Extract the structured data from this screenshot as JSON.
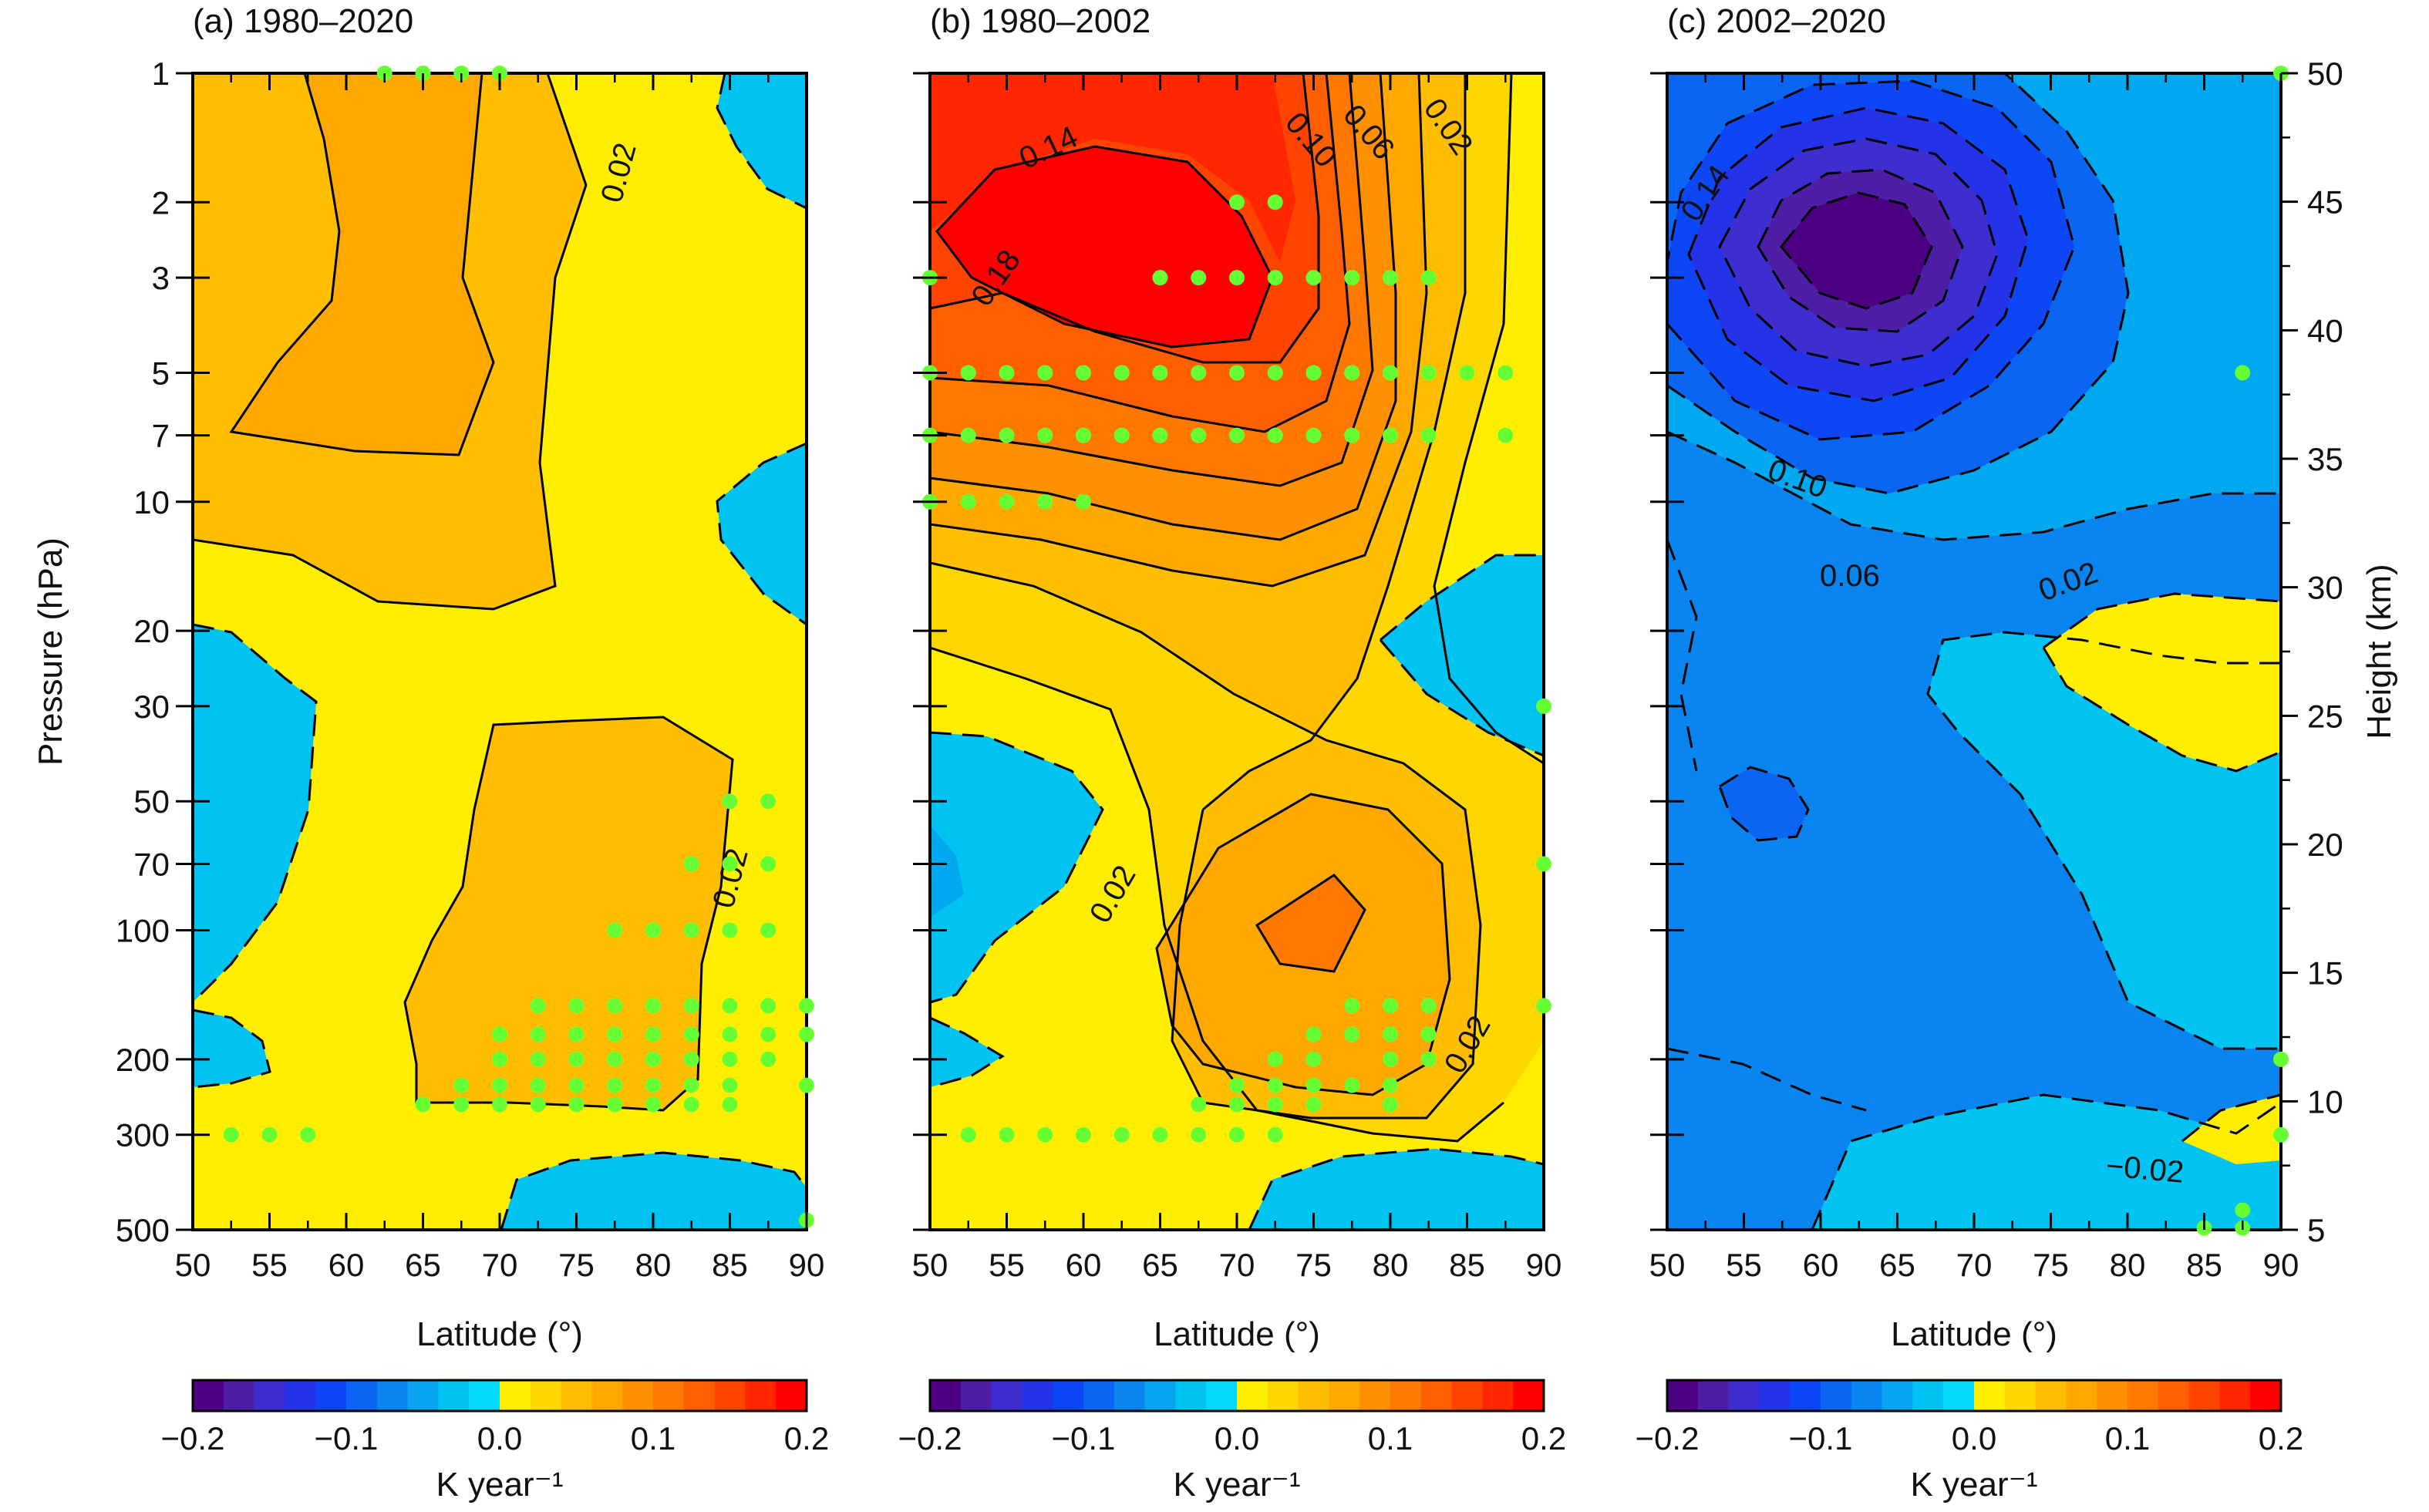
{
  "chart_data": {
    "type": "heatmap",
    "x_tick_labels": [
      "50",
      "55",
      "60",
      "65",
      "70",
      "75",
      "80",
      "85",
      "90"
    ],
    "x_values": [
      50,
      55,
      60,
      65,
      70,
      75,
      80,
      85,
      90
    ],
    "xlim": [
      50,
      90
    ],
    "xlabel": "Latitude (°)",
    "ylabel": "Pressure (hPa)",
    "ylabel_right": "Height (km)",
    "y_scale": "log",
    "ylim": [
      500,
      1
    ],
    "y_tick_values": [
      1,
      2,
      3,
      5,
      7,
      10,
      20,
      30,
      50,
      70,
      100,
      200,
      300,
      500
    ],
    "y_tick_labels": [
      "1",
      "2",
      "3",
      "5",
      "7",
      "10",
      "20",
      "30",
      "50",
      "70",
      "100",
      "200",
      "300",
      "500"
    ],
    "height_tick_labels": [
      "50",
      "45",
      "40",
      "35",
      "30",
      "25",
      "20",
      "15",
      "10",
      "5"
    ],
    "height_tick_values": [
      50,
      45,
      40,
      35,
      30,
      25,
      20,
      15,
      10,
      5
    ],
    "colorbar": {
      "label": "K year⁻¹",
      "range": [
        -0.2,
        0.2
      ],
      "tick_labels": [
        "−0.2",
        "−0.1",
        "0.0",
        "0.1",
        "0.2"
      ],
      "colors": [
        "#4b0082",
        "#4e1fa6",
        "#3f2ecf",
        "#2533e8",
        "#0d47f5",
        "#0a66f2",
        "#0a84ee",
        "#08a4ef",
        "#00c3f2",
        "#00d9f8",
        "#ffee00",
        "#ffd700",
        "#ffbf00",
        "#ffa800",
        "#ff9000",
        "#ff7800",
        "#ff5f00",
        "#ff4400",
        "#ff2600",
        "#ff0000"
      ]
    },
    "panels": [
      {
        "title": "(a) 1980–2020",
        "contour_labels": [
          "0.02",
          "0.02"
        ],
        "regions": [
          {
            "color": "#ffee00",
            "description_value": 0.01
          },
          {
            "color": "#ffbf00",
            "value": 0.03
          },
          {
            "color": "#ffa800",
            "value": 0.05
          },
          {
            "color": "#00c3f2",
            "value": -0.01
          }
        ],
        "significance_points": [
          [
            62.5,
            1
          ],
          [
            65,
            1
          ],
          [
            67.5,
            1
          ],
          [
            70,
            1
          ],
          [
            52.5,
            300
          ],
          [
            55,
            300
          ],
          [
            57.5,
            300
          ],
          [
            85,
            50
          ],
          [
            87.5,
            50
          ],
          [
            82.5,
            70
          ],
          [
            85,
            70
          ],
          [
            87.5,
            70
          ],
          [
            77.5,
            100
          ],
          [
            80,
            100
          ],
          [
            82.5,
            100
          ],
          [
            85,
            100
          ],
          [
            87.5,
            100
          ],
          [
            72.5,
            150
          ],
          [
            75,
            150
          ],
          [
            77.5,
            150
          ],
          [
            80,
            150
          ],
          [
            82.5,
            150
          ],
          [
            85,
            150
          ],
          [
            87.5,
            150
          ],
          [
            90,
            150
          ],
          [
            70,
            175
          ],
          [
            72.5,
            175
          ],
          [
            75,
            175
          ],
          [
            77.5,
            175
          ],
          [
            80,
            175
          ],
          [
            82.5,
            175
          ],
          [
            85,
            175
          ],
          [
            87.5,
            175
          ],
          [
            90,
            175
          ],
          [
            70,
            200
          ],
          [
            72.5,
            200
          ],
          [
            75,
            200
          ],
          [
            77.5,
            200
          ],
          [
            80,
            200
          ],
          [
            82.5,
            200
          ],
          [
            85,
            200
          ],
          [
            87.5,
            200
          ],
          [
            67.5,
            230
          ],
          [
            70,
            230
          ],
          [
            72.5,
            230
          ],
          [
            75,
            230
          ],
          [
            77.5,
            230
          ],
          [
            80,
            230
          ],
          [
            82.5,
            230
          ],
          [
            85,
            230
          ],
          [
            90,
            230
          ],
          [
            65,
            255
          ],
          [
            67.5,
            255
          ],
          [
            70,
            255
          ],
          [
            72.5,
            255
          ],
          [
            75,
            255
          ],
          [
            77.5,
            255
          ],
          [
            80,
            255
          ],
          [
            82.5,
            255
          ],
          [
            85,
            255
          ],
          [
            90,
            475
          ]
        ]
      },
      {
        "title": "(b) 1980–2002",
        "contour_labels": [
          "0.14",
          "0.18",
          "0.10",
          "0.06",
          "0.02",
          "0.02",
          "0.02"
        ],
        "significance_points": [
          [
            70,
            2
          ],
          [
            72.5,
            2
          ],
          [
            50,
            3
          ],
          [
            65,
            3
          ],
          [
            67.5,
            3
          ],
          [
            70,
            3
          ],
          [
            72.5,
            3
          ],
          [
            75,
            3
          ],
          [
            77.5,
            3
          ],
          [
            80,
            3
          ],
          [
            82.5,
            3
          ],
          [
            50,
            5
          ],
          [
            52.5,
            5
          ],
          [
            55,
            5
          ],
          [
            57.5,
            5
          ],
          [
            60,
            5
          ],
          [
            62.5,
            5
          ],
          [
            65,
            5
          ],
          [
            67.5,
            5
          ],
          [
            70,
            5
          ],
          [
            72.5,
            5
          ],
          [
            75,
            5
          ],
          [
            77.5,
            5
          ],
          [
            80,
            5
          ],
          [
            82.5,
            5
          ],
          [
            85,
            5
          ],
          [
            87.5,
            5
          ],
          [
            50,
            7
          ],
          [
            52.5,
            7
          ],
          [
            55,
            7
          ],
          [
            57.5,
            7
          ],
          [
            60,
            7
          ],
          [
            62.5,
            7
          ],
          [
            65,
            7
          ],
          [
            67.5,
            7
          ],
          [
            70,
            7
          ],
          [
            72.5,
            7
          ],
          [
            75,
            7
          ],
          [
            77.5,
            7
          ],
          [
            80,
            7
          ],
          [
            82.5,
            7
          ],
          [
            87.5,
            7
          ],
          [
            50,
            10
          ],
          [
            52.5,
            10
          ],
          [
            55,
            10
          ],
          [
            57.5,
            10
          ],
          [
            60,
            10
          ],
          [
            90,
            30
          ],
          [
            90,
            70
          ],
          [
            77.5,
            150
          ],
          [
            80,
            150
          ],
          [
            82.5,
            150
          ],
          [
            90,
            150
          ],
          [
            75,
            175
          ],
          [
            77.5,
            175
          ],
          [
            80,
            175
          ],
          [
            82.5,
            175
          ],
          [
            72.5,
            200
          ],
          [
            75,
            200
          ],
          [
            80,
            200
          ],
          [
            82.5,
            200
          ],
          [
            70,
            230
          ],
          [
            72.5,
            230
          ],
          [
            75,
            230
          ],
          [
            77.5,
            230
          ],
          [
            80,
            230
          ],
          [
            67.5,
            255
          ],
          [
            70,
            255
          ],
          [
            72.5,
            255
          ],
          [
            75,
            255
          ],
          [
            80,
            255
          ],
          [
            52.5,
            300
          ],
          [
            55,
            300
          ],
          [
            57.5,
            300
          ],
          [
            60,
            300
          ],
          [
            62.5,
            300
          ],
          [
            65,
            300
          ],
          [
            67.5,
            300
          ],
          [
            70,
            300
          ],
          [
            72.5,
            300
          ]
        ]
      },
      {
        "title": "(c) 2002–2020",
        "contour_labels": [
          "0.14",
          "0.10",
          "0.06",
          "0.02",
          "−0.02"
        ],
        "significance_points": [
          [
            90,
            1
          ],
          [
            87.5,
            5
          ],
          [
            90,
            200
          ],
          [
            90,
            300
          ],
          [
            87.5,
            450
          ],
          [
            85,
            495
          ],
          [
            87.5,
            495
          ]
        ]
      }
    ]
  }
}
